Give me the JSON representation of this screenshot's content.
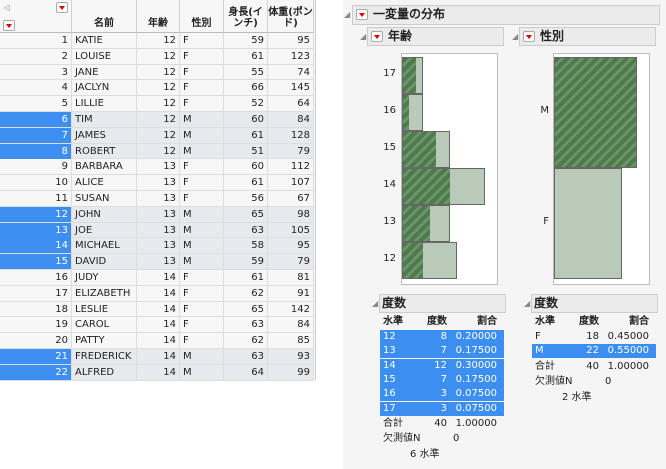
{
  "table": {
    "columns": [
      "名前",
      "年齢",
      "性別",
      "身長(インチ)",
      "体重(ポンド)"
    ],
    "rows": [
      {
        "n": 1,
        "name": "KATIE",
        "age": 12,
        "sex": "F",
        "h": 59,
        "w": 95,
        "sel": false
      },
      {
        "n": 2,
        "name": "LOUISE",
        "age": 12,
        "sex": "F",
        "h": 61,
        "w": 123,
        "sel": false
      },
      {
        "n": 3,
        "name": "JANE",
        "age": 12,
        "sex": "F",
        "h": 55,
        "w": 74,
        "sel": false
      },
      {
        "n": 4,
        "name": "JACLYN",
        "age": 12,
        "sex": "F",
        "h": 66,
        "w": 145,
        "sel": false
      },
      {
        "n": 5,
        "name": "LILLIE",
        "age": 12,
        "sex": "F",
        "h": 52,
        "w": 64,
        "sel": false
      },
      {
        "n": 6,
        "name": "TIM",
        "age": 12,
        "sex": "M",
        "h": 60,
        "w": 84,
        "sel": true
      },
      {
        "n": 7,
        "name": "JAMES",
        "age": 12,
        "sex": "M",
        "h": 61,
        "w": 128,
        "sel": true
      },
      {
        "n": 8,
        "name": "ROBERT",
        "age": 12,
        "sex": "M",
        "h": 51,
        "w": 79,
        "sel": true
      },
      {
        "n": 9,
        "name": "BARBARA",
        "age": 13,
        "sex": "F",
        "h": 60,
        "w": 112,
        "sel": false
      },
      {
        "n": 10,
        "name": "ALICE",
        "age": 13,
        "sex": "F",
        "h": 61,
        "w": 107,
        "sel": false
      },
      {
        "n": 11,
        "name": "SUSAN",
        "age": 13,
        "sex": "F",
        "h": 56,
        "w": 67,
        "sel": false
      },
      {
        "n": 12,
        "name": "JOHN",
        "age": 13,
        "sex": "M",
        "h": 65,
        "w": 98,
        "sel": true
      },
      {
        "n": 13,
        "name": "JOE",
        "age": 13,
        "sex": "M",
        "h": 63,
        "w": 105,
        "sel": true
      },
      {
        "n": 14,
        "name": "MICHAEL",
        "age": 13,
        "sex": "M",
        "h": 58,
        "w": 95,
        "sel": true
      },
      {
        "n": 15,
        "name": "DAVID",
        "age": 13,
        "sex": "M",
        "h": 59,
        "w": 79,
        "sel": true
      },
      {
        "n": 16,
        "name": "JUDY",
        "age": 14,
        "sex": "F",
        "h": 61,
        "w": 81,
        "sel": false
      },
      {
        "n": 17,
        "name": "ELIZABETH",
        "age": 14,
        "sex": "F",
        "h": 62,
        "w": 91,
        "sel": false
      },
      {
        "n": 18,
        "name": "LESLIE",
        "age": 14,
        "sex": "F",
        "h": 65,
        "w": 142,
        "sel": false
      },
      {
        "n": 19,
        "name": "CAROL",
        "age": 14,
        "sex": "F",
        "h": 63,
        "w": 84,
        "sel": false
      },
      {
        "n": 20,
        "name": "PATTY",
        "age": 14,
        "sex": "F",
        "h": 62,
        "w": 85,
        "sel": false
      },
      {
        "n": 21,
        "name": "FREDERICK",
        "age": 14,
        "sex": "M",
        "h": 63,
        "w": 93,
        "sel": true
      },
      {
        "n": 22,
        "name": "ALFRED",
        "age": 14,
        "sex": "M",
        "h": 64,
        "w": 99,
        "sel": true
      }
    ]
  },
  "report": {
    "title": "一変量の分布",
    "age": {
      "title": "年齢",
      "levels": [
        "12",
        "13",
        "14",
        "15",
        "16",
        "17"
      ],
      "counts": [
        8,
        7,
        12,
        7,
        3,
        3
      ],
      "selected": [
        3,
        4,
        7,
        5,
        1,
        2
      ],
      "freq": {
        "title": "度数",
        "headers": [
          "水準",
          "度数",
          "割合"
        ],
        "rows": [
          [
            "12",
            "8",
            "0.20000"
          ],
          [
            "13",
            "7",
            "0.17500"
          ],
          [
            "14",
            "12",
            "0.30000"
          ],
          [
            "15",
            "7",
            "0.17500"
          ],
          [
            "16",
            "3",
            "0.07500"
          ],
          [
            "17",
            "3",
            "0.07500"
          ]
        ],
        "highlighted": [
          0,
          1,
          2,
          3,
          4,
          5
        ],
        "total": [
          "合計",
          "40",
          "1.00000"
        ],
        "missing": [
          "欠測値N",
          "0"
        ],
        "levels_text": "6  水準"
      }
    },
    "sex": {
      "title": "性別",
      "levels": [
        "F",
        "M"
      ],
      "counts": [
        18,
        22
      ],
      "selected": [
        0,
        22
      ],
      "freq": {
        "title": "度数",
        "headers": [
          "水準",
          "度数",
          "割合"
        ],
        "rows": [
          [
            "F",
            "18",
            "0.45000"
          ],
          [
            "M",
            "22",
            "0.55000"
          ]
        ],
        "highlighted": [
          1
        ],
        "total": [
          "合計",
          "40",
          "1.00000"
        ],
        "missing": [
          "欠測値N",
          "0"
        ],
        "levels_text": "2  水準"
      }
    }
  },
  "colors": {
    "selection": "#3c8ff0",
    "bar": "#b9cbb8",
    "hatch": "#4f7a4c"
  }
}
